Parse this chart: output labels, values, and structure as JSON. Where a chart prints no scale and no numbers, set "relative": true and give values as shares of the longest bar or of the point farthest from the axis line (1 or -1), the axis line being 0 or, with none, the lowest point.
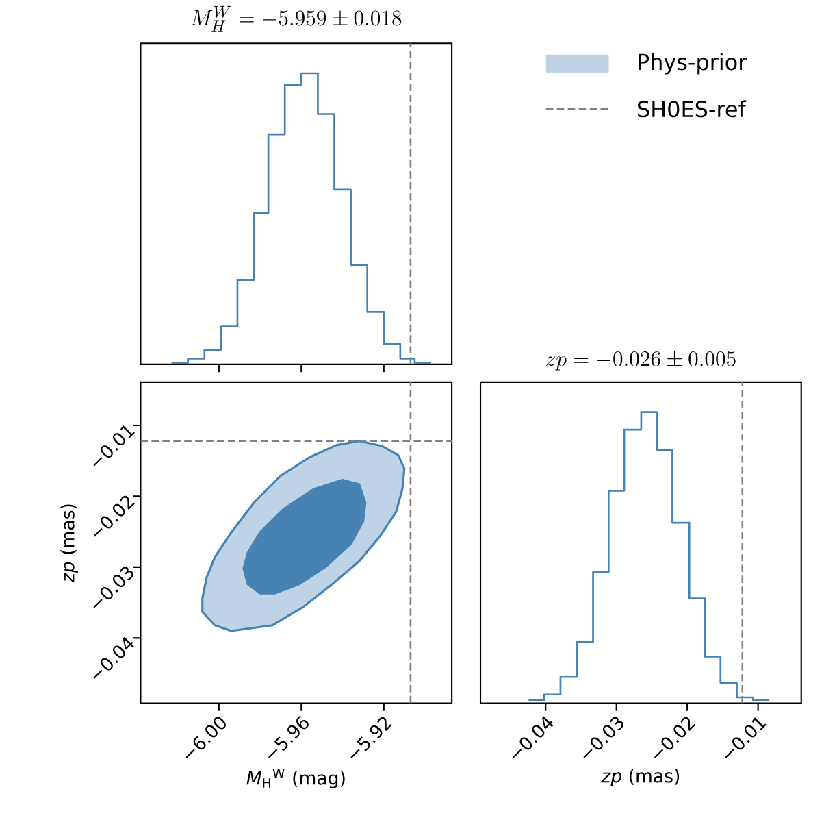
{
  "chart_data": [
    {
      "type": "step",
      "title": "M_H^W = -5.959 \\pm 0.018",
      "relative": true,
      "color": "#4682b4",
      "x": [
        -6.023,
        -6.015,
        -6.007,
        -5.999,
        -5.991,
        -5.983,
        -5.976,
        -5.968,
        -5.96,
        -5.952,
        -5.944,
        -5.936,
        -5.928,
        -5.92,
        -5.912,
        -5.905,
        -5.897
      ],
      "values": [
        0.005,
        0.02,
        0.05,
        0.13,
        0.29,
        0.52,
        0.79,
        0.96,
        1.0,
        0.86,
        0.6,
        0.34,
        0.18,
        0.07,
        0.02,
        0.005,
        0.005
      ],
      "xlim": [
        -6.038,
        -5.887
      ],
      "xticks": [
        {
          "value": -6.0,
          "label": null
        },
        {
          "value": -5.96,
          "label": null
        },
        {
          "value": -5.92,
          "label": null
        }
      ],
      "tick_labels": false,
      "ref_lines": [
        {
          "axis": "x",
          "value": -5.907,
          "color": "#808080",
          "line_style": "dashed"
        }
      ]
    },
    {
      "type": "area",
      "color": "#4682b4",
      "legend": "top right",
      "xlabel": "*M*$_{H}$$^{W}$ (mag)",
      "ylabel": "*zp* (mas)",
      "series": [
        {
          "name": "Phys-prior",
          "color": "#bfd3e6",
          "x": [
            -6.008,
            -6.006,
            -6.002,
            -5.994,
            -5.983,
            -5.97,
            -5.956,
            -5.943,
            -5.932,
            -5.921,
            -5.913,
            -5.91,
            -5.911,
            -5.914,
            -5.922,
            -5.932,
            -5.945,
            -5.959,
            -5.974,
            -5.994,
            -6.002,
            -6.008
          ],
          "values": [
            -0.0344,
            -0.0315,
            -0.0286,
            -0.0251,
            -0.0209,
            -0.0171,
            -0.0145,
            -0.0128,
            -0.0122,
            -0.0129,
            -0.0142,
            -0.0161,
            -0.019,
            -0.0222,
            -0.0257,
            -0.0292,
            -0.0324,
            -0.0356,
            -0.0382,
            -0.039,
            -0.0382,
            -0.0363
          ]
        },
        {
          "color": "#4682b4",
          "x": [
            -5.988,
            -5.986,
            -5.98,
            -5.969,
            -5.954,
            -5.94,
            -5.932,
            -5.929,
            -5.93,
            -5.936,
            -5.948,
            -5.961,
            -5.973,
            -5.98,
            -5.986
          ],
          "values": [
            -0.0302,
            -0.028,
            -0.0251,
            -0.0219,
            -0.019,
            -0.0177,
            -0.0183,
            -0.0209,
            -0.0235,
            -0.0267,
            -0.0299,
            -0.0324,
            -0.0337,
            -0.0337,
            -0.0324
          ]
        }
      ],
      "xlim": [
        -6.038,
        -5.887
      ],
      "ylim": [
        -0.0492,
        -0.0039
      ],
      "xticks": [
        {
          "value": -6.0,
          "label": "−6.00"
        },
        {
          "value": -5.96,
          "label": "−5.96"
        },
        {
          "value": -5.92,
          "label": "−5.92"
        }
      ],
      "yticks": [
        {
          "value": -0.04,
          "label": "−0.04"
        },
        {
          "value": -0.03,
          "label": "−0.03"
        },
        {
          "value": -0.02,
          "label": "−0.02"
        },
        {
          "value": -0.01,
          "label": "−0.01"
        }
      ],
      "ref_lines": [
        {
          "axis": "x",
          "value": -5.907,
          "label": "SH0ES-ref",
          "color": "#808080",
          "line_style": "dashed"
        },
        {
          "axis": "y",
          "value": -0.0122,
          "color": "#808080",
          "line_style": "dashed"
        }
      ]
    },
    {
      "type": "step",
      "title": "zp = -0.026 \\pm 0.005",
      "relative": true,
      "color": "#4682b4",
      "xlabel": "*zp* (mas)",
      "x": [
        -0.0424,
        -0.0402,
        -0.0379,
        -0.0356,
        -0.0333,
        -0.0311,
        -0.0289,
        -0.0265,
        -0.0243,
        -0.0221,
        -0.0197,
        -0.0175,
        -0.0153,
        -0.013,
        -0.0107,
        -0.0084
      ],
      "values": [
        0.01,
        0.03,
        0.09,
        0.21,
        0.45,
        0.73,
        0.94,
        1.0,
        0.87,
        0.62,
        0.36,
        0.16,
        0.07,
        0.02,
        0.01,
        0.01
      ],
      "xlim": [
        -0.0492,
        -0.0039
      ],
      "xticks": [
        {
          "value": -0.04,
          "label": "−0.04"
        },
        {
          "value": -0.03,
          "label": "−0.03"
        },
        {
          "value": -0.02,
          "label": "−0.02"
        },
        {
          "value": -0.01,
          "label": "−0.01"
        }
      ],
      "tick_labels": "x",
      "ref_lines": [
        {
          "axis": "x",
          "value": -0.0122,
          "color": "#808080",
          "line_style": "dashed"
        }
      ]
    }
  ]
}
